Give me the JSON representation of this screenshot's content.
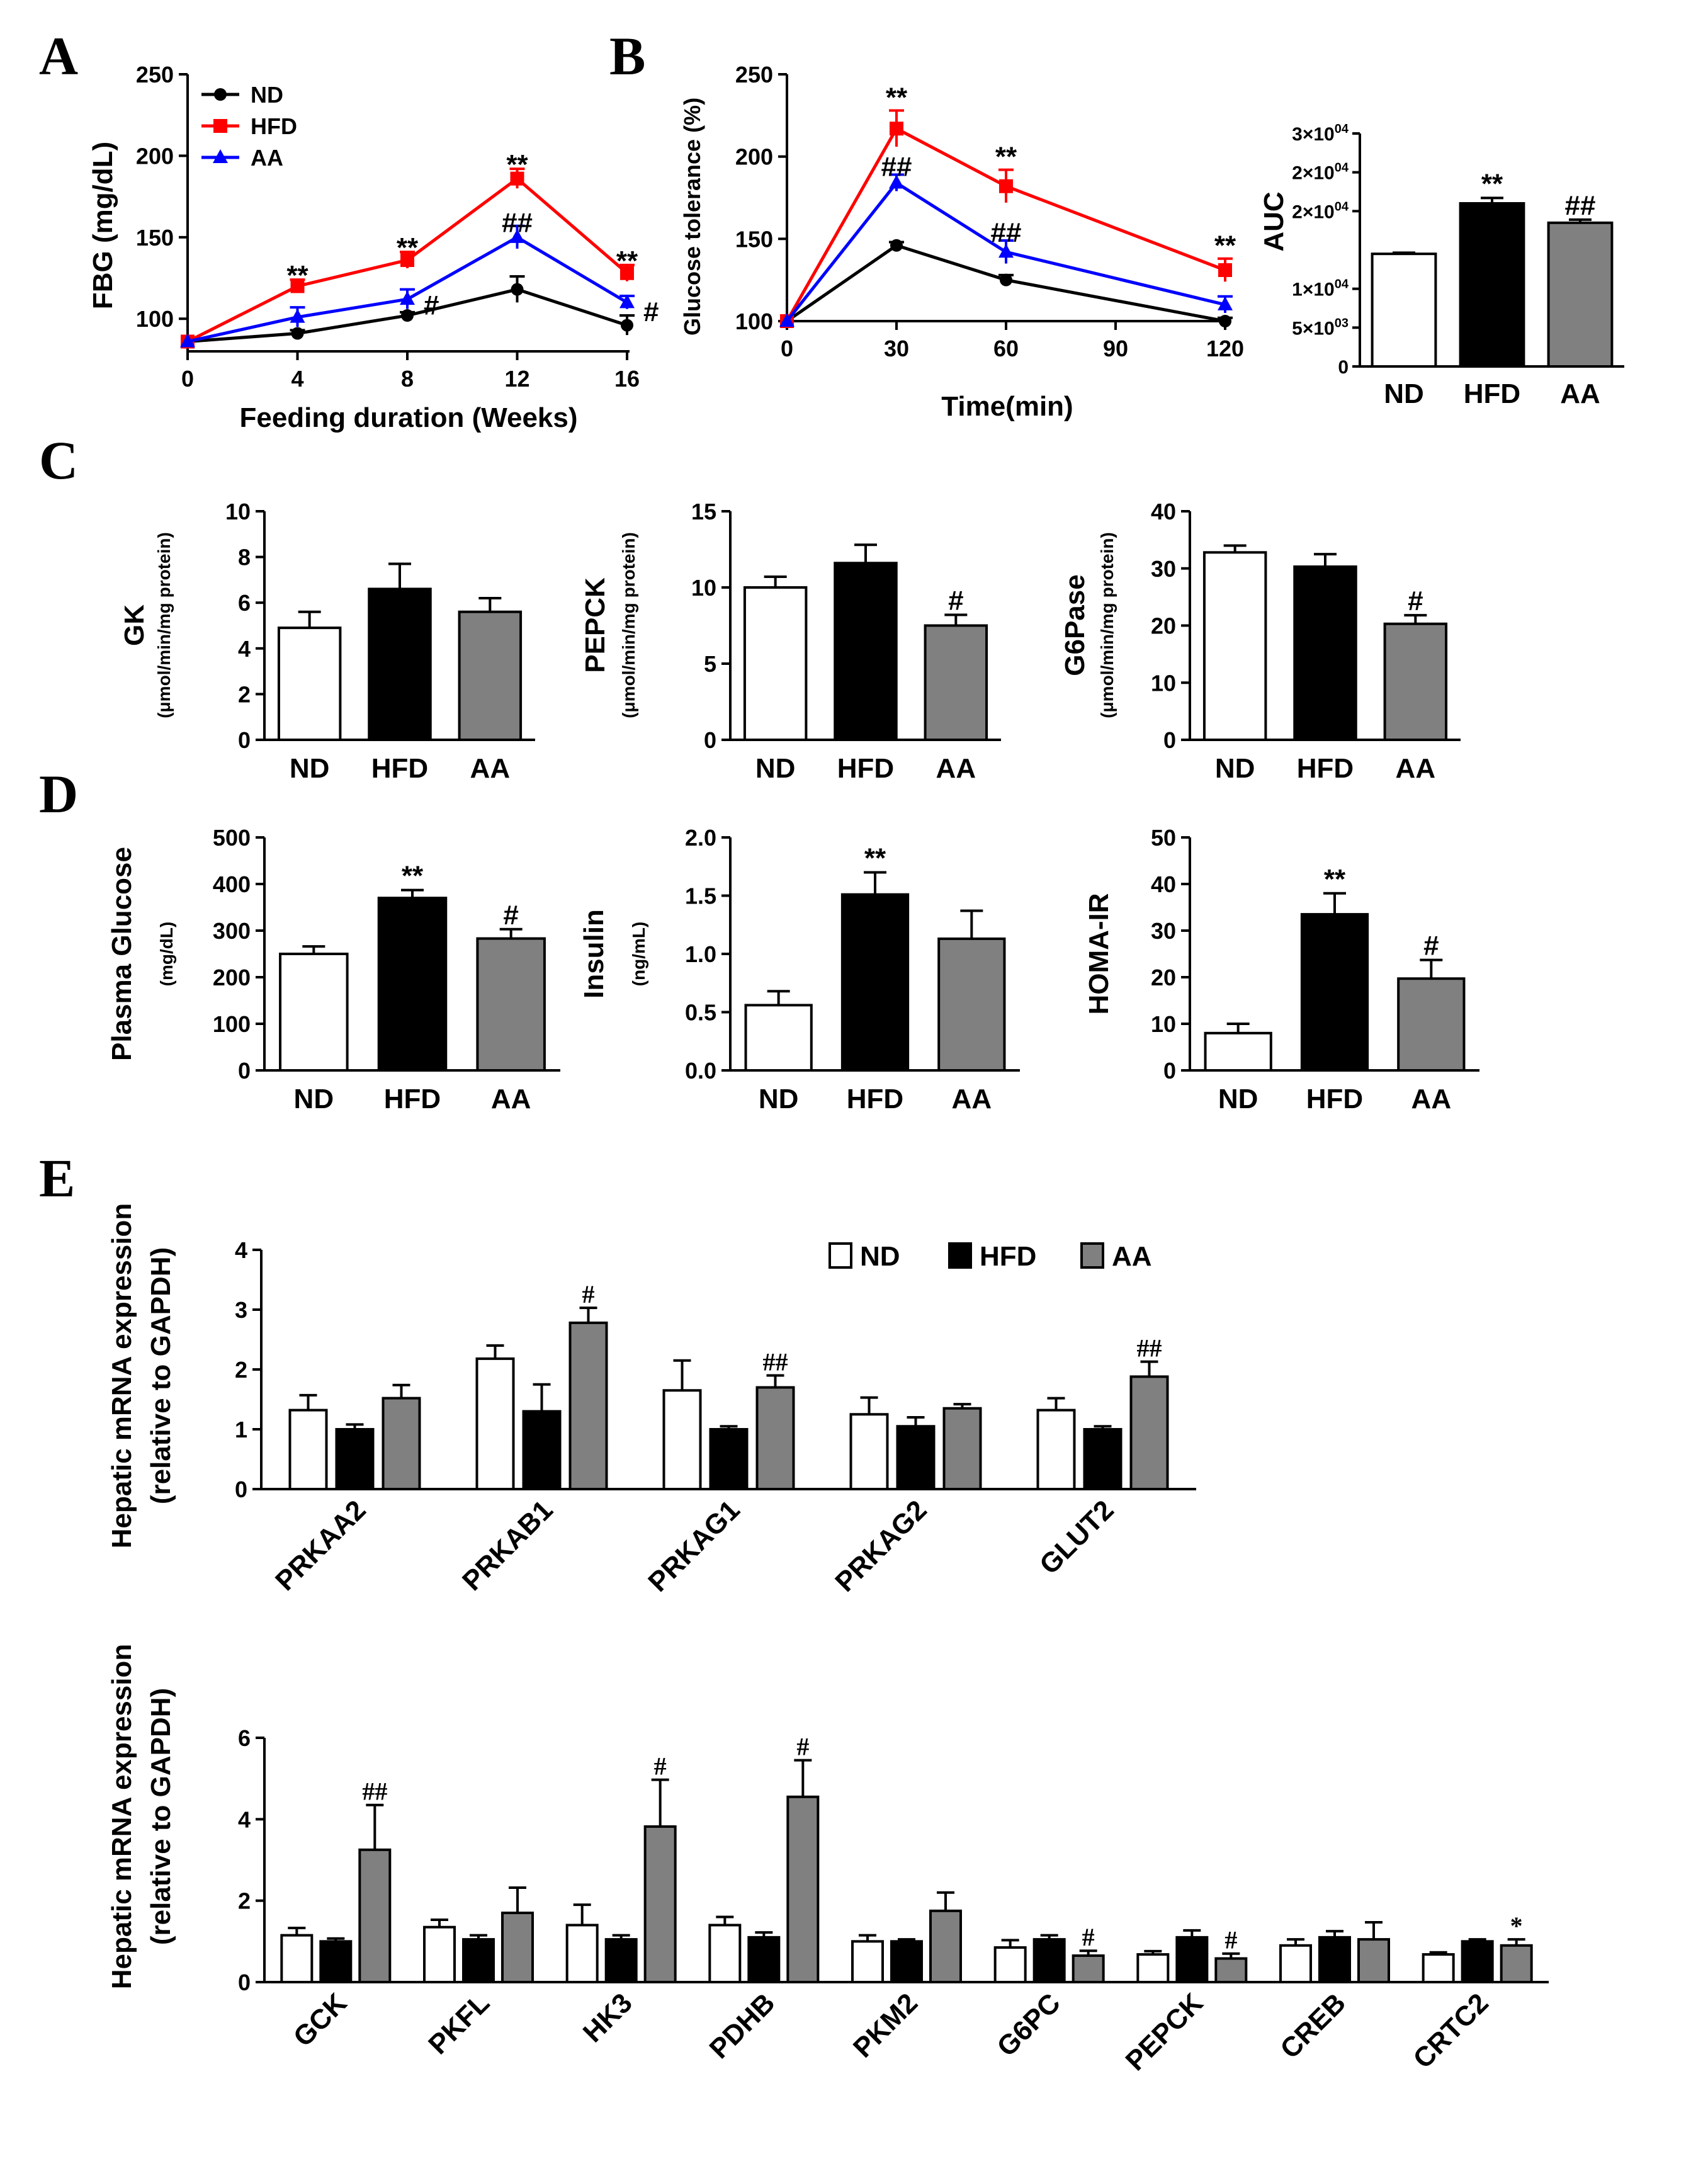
{
  "panels": {
    "A": "A",
    "B": "B",
    "C": "C",
    "D": "D",
    "E": "E"
  },
  "colors": {
    "ND": "#000000",
    "HFD": "#ff0000",
    "AA": "#0000ff",
    "bar_ND": "#ffffff",
    "bar_HFD": "#000000",
    "bar_AA": "#808080"
  },
  "chart_data": [
    {
      "id": "A",
      "type": "line",
      "xlabel": "Feeding duration (Weeks)",
      "ylabel": "FBG (mg/dL)",
      "x": [
        0,
        4,
        8,
        12,
        16
      ],
      "xticks": [
        "0",
        "4",
        "8",
        "12",
        "16"
      ],
      "ylim": [
        80,
        250
      ],
      "yticks": [
        "100",
        "150",
        "200",
        "250"
      ],
      "legend": [
        "ND",
        "HFD",
        "AA"
      ],
      "legend_position": "top-left",
      "series": [
        {
          "name": "ND",
          "values": [
            86,
            91,
            102,
            118,
            96
          ],
          "err": [
            0,
            2,
            2,
            8,
            6
          ]
        },
        {
          "name": "HFD",
          "values": [
            86,
            120,
            136,
            186,
            128
          ],
          "err": [
            0,
            4,
            5,
            6,
            5
          ]
        },
        {
          "name": "AA",
          "values": [
            86,
            101,
            112,
            150,
            110
          ],
          "err": [
            0,
            6,
            6,
            7,
            4
          ]
        }
      ],
      "annotations": [
        "**",
        "**",
        "**",
        "**",
        "#",
        "##",
        "#"
      ]
    },
    {
      "id": "B",
      "type": "line",
      "xlabel": "Time(min)",
      "ylabel": "Glucose tolerance (%)",
      "x": [
        0,
        30,
        60,
        120
      ],
      "xticks": [
        "0",
        "30",
        "60",
        "90",
        "120"
      ],
      "ylim": [
        100,
        250
      ],
      "yticks": [
        "100",
        "150",
        "200",
        "250"
      ],
      "series": [
        {
          "name": "ND",
          "values": [
            100,
            146,
            125,
            100
          ],
          "err": [
            0,
            2,
            3,
            2
          ]
        },
        {
          "name": "HFD",
          "values": [
            100,
            217,
            182,
            131
          ],
          "err": [
            0,
            11,
            10,
            7
          ]
        },
        {
          "name": "AA",
          "values": [
            100,
            184,
            142,
            110
          ],
          "err": [
            0,
            5,
            7,
            5
          ]
        }
      ],
      "annotations": [
        "**",
        "**",
        "**",
        "##",
        "##"
      ]
    },
    {
      "id": "B-AUC",
      "type": "bar",
      "ylabel": "AUC",
      "categories": [
        "ND",
        "HFD",
        "AA"
      ],
      "values": [
        14500,
        21000,
        18500
      ],
      "err": [
        150,
        700,
        400
      ],
      "ylim": [
        0,
        30000
      ],
      "yticks": [
        {
          "mant": "0",
          "exp": ""
        },
        {
          "mant": "5×10",
          "exp": "03"
        },
        {
          "mant": "1×10",
          "exp": "04"
        },
        {
          "mant": "2×10",
          "exp": "04"
        },
        {
          "mant": "2×10",
          "exp": "04"
        },
        {
          "mant": "3×10",
          "exp": "04"
        }
      ],
      "annotations": [
        "**",
        "##"
      ]
    },
    {
      "id": "C-GK",
      "type": "bar",
      "ylabel": "GK",
      "unit": "(μmol/min/mg protein)",
      "categories": [
        "ND",
        "HFD",
        "AA"
      ],
      "values": [
        4.9,
        6.6,
        5.6
      ],
      "err": [
        0.7,
        1.1,
        0.6
      ],
      "ylim": [
        0,
        10
      ],
      "yticks": [
        "0",
        "2",
        "4",
        "6",
        "8",
        "10"
      ],
      "annotations": []
    },
    {
      "id": "C-PEPCK",
      "type": "bar",
      "ylabel": "PEPCK",
      "unit": "(μmol/min/mg protein)",
      "categories": [
        "ND",
        "HFD",
        "AA"
      ],
      "values": [
        10.0,
        11.6,
        7.5
      ],
      "err": [
        0.7,
        1.2,
        0.7
      ],
      "ylim": [
        0,
        15
      ],
      "yticks": [
        "0",
        "5",
        "10",
        "15"
      ],
      "annotations": [
        "#"
      ]
    },
    {
      "id": "C-G6Pase",
      "type": "bar",
      "ylabel": "G6Pase",
      "unit": "(μmol/min/mg protein)",
      "categories": [
        "ND",
        "HFD",
        "AA"
      ],
      "values": [
        32.8,
        30.3,
        20.3
      ],
      "err": [
        1.2,
        2.2,
        1.5
      ],
      "ylim": [
        0,
        40
      ],
      "yticks": [
        "0",
        "10",
        "20",
        "30",
        "40"
      ],
      "annotations": [
        "#"
      ]
    },
    {
      "id": "D-Glucose",
      "type": "bar",
      "ylabel": "Plasma Glucose",
      "unit": "(mg/dL)",
      "categories": [
        "ND",
        "HFD",
        "AA"
      ],
      "values": [
        250,
        370,
        283
      ],
      "err": [
        16,
        17,
        20
      ],
      "ylim": [
        0,
        500
      ],
      "yticks": [
        "0",
        "100",
        "200",
        "300",
        "400",
        "500"
      ],
      "annotations": [
        "**",
        "#"
      ]
    },
    {
      "id": "D-Insulin",
      "type": "bar",
      "ylabel": "Insulin",
      "unit": "(ng/mL)",
      "categories": [
        "ND",
        "HFD",
        "AA"
      ],
      "values": [
        0.56,
        1.51,
        1.13
      ],
      "err": [
        0.12,
        0.19,
        0.24
      ],
      "ylim": [
        0,
        2.0
      ],
      "yticks": [
        "0.0",
        "0.5",
        "1.0",
        "1.5",
        "2.0"
      ],
      "annotations": [
        "**"
      ]
    },
    {
      "id": "D-HOMA",
      "type": "bar",
      "ylabel": "HOMA-IR",
      "categories": [
        "ND",
        "HFD",
        "AA"
      ],
      "values": [
        8,
        33.5,
        19.7
      ],
      "err": [
        2,
        4.5,
        4
      ],
      "ylim": [
        0,
        50
      ],
      "yticks": [
        "0",
        "10",
        "20",
        "30",
        "40",
        "50"
      ],
      "annotations": [
        "**",
        "#"
      ]
    },
    {
      "id": "E1",
      "type": "bar",
      "ylabel": "Hepatic mRNA expression",
      "ylabel2": "(relative to GAPDH)",
      "categories": [
        "PRKAA2",
        "PRKAB1",
        "PRKAG1",
        "PRKAG2",
        "GLUT2"
      ],
      "legend": [
        "ND",
        "HFD",
        "AA"
      ],
      "legend_position": "top-right",
      "series": [
        {
          "name": "ND",
          "values": [
            1.32,
            2.18,
            1.65,
            1.25,
            1.32
          ],
          "err": [
            0.25,
            0.22,
            0.5,
            0.28,
            0.2
          ]
        },
        {
          "name": "HFD",
          "values": [
            1.0,
            1.3,
            1.0,
            1.05,
            1.0
          ],
          "err": [
            0.08,
            0.45,
            0.05,
            0.15,
            0.05
          ]
        },
        {
          "name": "AA",
          "values": [
            1.52,
            2.78,
            1.7,
            1.35,
            1.88
          ],
          "err": [
            0.22,
            0.25,
            0.2,
            0.07,
            0.25
          ]
        }
      ],
      "ylim": [
        0,
        4
      ],
      "yticks": [
        "0",
        "1",
        "2",
        "3",
        "4"
      ],
      "annotations": [
        "#",
        "##",
        "##"
      ]
    },
    {
      "id": "E2",
      "type": "bar",
      "ylabel": "Hepatic mRNA expression",
      "ylabel2": "(relative to GAPDH)",
      "categories": [
        "GCK",
        "PKFL",
        "HK3",
        "PDHB",
        "PKM2",
        "G6PC",
        "PEPCK",
        "CREB",
        "CRTC2"
      ],
      "series": [
        {
          "name": "ND",
          "values": [
            1.15,
            1.35,
            1.4,
            1.4,
            1.0,
            0.85,
            0.68,
            0.9,
            0.68
          ]
        },
        {
          "name": "HFD",
          "values": [
            1.0,
            1.05,
            1.05,
            1.1,
            1.0,
            1.05,
            1.1,
            1.1,
            1.0
          ]
        },
        {
          "name": "AA",
          "values": [
            3.25,
            1.7,
            3.82,
            4.55,
            1.75,
            0.65,
            0.58,
            1.05,
            0.9
          ]
        }
      ],
      "err_series": [
        [
          0.18,
          0.18,
          0.5,
          0.2,
          0.15,
          0.18,
          0.08,
          0.15,
          0.05
        ],
        [
          0.07,
          0.1,
          0.1,
          0.12,
          0.05,
          0.1,
          0.17,
          0.15,
          0.05
        ],
        [
          1.1,
          0.62,
          1.15,
          0.9,
          0.45,
          0.12,
          0.12,
          0.42,
          0.15
        ]
      ],
      "ylim": [
        0,
        6
      ],
      "yticks": [
        "0",
        "2",
        "4",
        "6"
      ],
      "annotations": [
        "##",
        "#",
        "#",
        "#",
        "#",
        "*"
      ]
    }
  ]
}
